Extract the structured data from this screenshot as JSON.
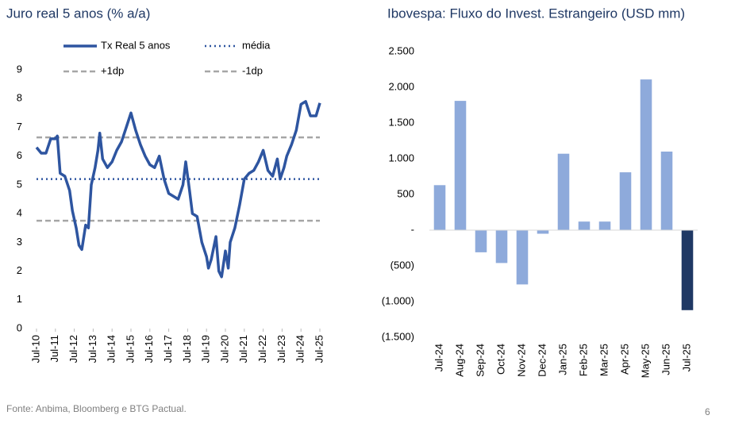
{
  "chart_data": [
    {
      "type": "line",
      "title": "Juro real 5 anos (% a/a)",
      "x": [
        2010.5,
        2010.75,
        2011.0,
        2011.25,
        2011.5,
        2011.6,
        2011.75,
        2012.0,
        2012.25,
        2012.4,
        2012.6,
        2012.75,
        2012.9,
        2013.1,
        2013.25,
        2013.4,
        2013.6,
        2013.75,
        2013.85,
        2014.0,
        2014.25,
        2014.5,
        2014.75,
        2015.0,
        2015.25,
        2015.5,
        2015.75,
        2016.0,
        2016.25,
        2016.5,
        2016.75,
        2017.0,
        2017.25,
        2017.5,
        2017.75,
        2018.0,
        2018.25,
        2018.4,
        2018.6,
        2018.75,
        2019.0,
        2019.25,
        2019.5,
        2019.6,
        2019.75,
        2020.0,
        2020.15,
        2020.3,
        2020.5,
        2020.65,
        2020.75,
        2021.0,
        2021.25,
        2021.5,
        2021.75,
        2022.0,
        2022.25,
        2022.5,
        2022.75,
        2023.0,
        2023.25,
        2023.4,
        2023.6,
        2023.75,
        2024.0,
        2024.25,
        2024.5,
        2024.75,
        2025.0,
        2025.3,
        2025.5
      ],
      "series": [
        {
          "name": "Tx Real 5 anos",
          "color": "#2e55a0",
          "values": [
            6.3,
            6.1,
            6.1,
            6.6,
            6.6,
            6.7,
            5.4,
            5.3,
            4.8,
            4.1,
            3.5,
            2.9,
            2.75,
            3.6,
            3.5,
            5.0,
            5.6,
            6.2,
            6.8,
            5.9,
            5.6,
            5.8,
            6.2,
            6.5,
            7.0,
            7.5,
            6.9,
            6.4,
            6.0,
            5.7,
            5.6,
            6.0,
            5.2,
            4.7,
            4.6,
            4.5,
            5.0,
            5.8,
            4.8,
            4.0,
            3.9,
            3.0,
            2.5,
            2.1,
            2.4,
            3.2,
            2.0,
            1.8,
            2.7,
            2.1,
            3.0,
            3.5,
            4.3,
            5.2,
            5.4,
            5.5,
            5.8,
            6.2,
            5.5,
            5.3,
            5.9,
            5.2,
            5.6,
            6.0,
            6.4,
            6.9,
            7.8,
            7.9,
            7.4,
            7.4,
            7.85
          ]
        }
      ],
      "reference_lines": [
        {
          "name": "média",
          "value": 5.2,
          "color": "#2e55a0",
          "style": "dotted"
        },
        {
          "name": "+1dp",
          "value": 6.65,
          "color": "#a6a6a6",
          "style": "dashed"
        },
        {
          "name": "-1dp",
          "value": 3.75,
          "color": "#a6a6a6",
          "style": "dashed"
        }
      ],
      "xlim": [
        2010.5,
        2025.5
      ],
      "xticks": [
        {
          "value": 2010.5,
          "label": "Jul-10"
        },
        {
          "value": 2011.5,
          "label": "Jul-11"
        },
        {
          "value": 2012.5,
          "label": "Jul-12"
        },
        {
          "value": 2013.5,
          "label": "Jul-13"
        },
        {
          "value": 2014.5,
          "label": "Jul-14"
        },
        {
          "value": 2015.5,
          "label": "Jul-15"
        },
        {
          "value": 2016.5,
          "label": "Jul-16"
        },
        {
          "value": 2017.5,
          "label": "Jul-17"
        },
        {
          "value": 2018.5,
          "label": "Jul-18"
        },
        {
          "value": 2019.5,
          "label": "Jul-19"
        },
        {
          "value": 2020.5,
          "label": "Jul-20"
        },
        {
          "value": 2021.5,
          "label": "Jul-21"
        },
        {
          "value": 2022.5,
          "label": "Jul-22"
        },
        {
          "value": 2023.5,
          "label": "Jul-23"
        },
        {
          "value": 2024.5,
          "label": "Jul-24"
        },
        {
          "value": 2025.5,
          "label": "Jul-25"
        }
      ],
      "ylim": [
        0,
        9
      ],
      "yticks": [
        0,
        1,
        2,
        3,
        4,
        5,
        6,
        7,
        8,
        9
      ],
      "grid": false
    },
    {
      "type": "bar",
      "title": "Ibovespa: Fluxo do Invest. Estrangeiro (USD mm)",
      "categories": [
        "Jul-24",
        "Aug-24",
        "Sep-24",
        "Oct-24",
        "Nov-24",
        "Dec-24",
        "Jan-25",
        "Feb-25",
        "Mar-25",
        "Apr-25",
        "May-25",
        "Jun-25",
        "Jul-25"
      ],
      "values": [
        630,
        1810,
        -310,
        -460,
        -760,
        -50,
        1070,
        120,
        120,
        810,
        2110,
        1100,
        -1120
      ],
      "colors": [
        "#8eaadb",
        "#8eaadb",
        "#8eaadb",
        "#8eaadb",
        "#8eaadb",
        "#8eaadb",
        "#8eaadb",
        "#8eaadb",
        "#8eaadb",
        "#8eaadb",
        "#8eaadb",
        "#8eaadb",
        "#1f3864"
      ],
      "ylim": [
        -1500,
        2500
      ],
      "yticks": [
        {
          "value": 2500,
          "label": "2.500"
        },
        {
          "value": 2000,
          "label": "2.000"
        },
        {
          "value": 1500,
          "label": "1.500"
        },
        {
          "value": 1000,
          "label": "1.000"
        },
        500,
        {
          "value": 0,
          "label": "-"
        },
        {
          "value": -500,
          "label": "(500)"
        },
        {
          "value": -1000,
          "label": "(1.000)"
        },
        {
          "value": -1500,
          "label": "(1.500)"
        }
      ],
      "grid": false
    }
  ],
  "footer": {
    "source": "Fonte: Anbima, Bloomberg e BTG Pactual.",
    "page": "6"
  }
}
